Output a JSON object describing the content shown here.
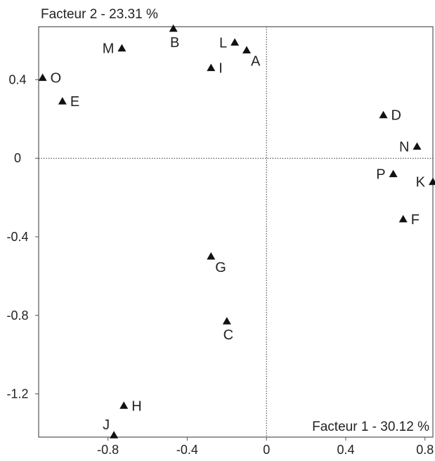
{
  "chart_data": {
    "type": "scatter",
    "x_axis_title": "Facteur 1  -  30.12 %",
    "y_axis_title": "Facteur 2  -  23.31 %",
    "xlim": [
      -1.15,
      0.84
    ],
    "ylim": [
      -1.42,
      0.67
    ],
    "x_ticks": [
      {
        "value": -0.8,
        "label": "-0.8"
      },
      {
        "value": -0.4,
        "label": "-0.4"
      },
      {
        "value": 0,
        "label": "0"
      },
      {
        "value": 0.4,
        "label": "0.4"
      },
      {
        "value": 0.8,
        "label": "0.8"
      }
    ],
    "y_ticks": [
      {
        "value": 0.4,
        "label": "0.4"
      },
      {
        "value": 0,
        "label": "0"
      },
      {
        "value": -0.4,
        "label": "-0.4"
      },
      {
        "value": -0.8,
        "label": "-0.8"
      },
      {
        "value": -1.2,
        "label": "-1.2"
      }
    ],
    "zero_lines": true,
    "marker": "triangle",
    "marker_color": "#111111",
    "points": [
      {
        "label": "A",
        "x": -0.1,
        "y": 0.55,
        "pos": "below-right"
      },
      {
        "label": "B",
        "x": -0.47,
        "y": 0.66,
        "pos": "below"
      },
      {
        "label": "C",
        "x": -0.2,
        "y": -0.83,
        "pos": "below"
      },
      {
        "label": "D",
        "x": 0.59,
        "y": 0.22,
        "pos": "right"
      },
      {
        "label": "E",
        "x": -1.03,
        "y": 0.29,
        "pos": "right"
      },
      {
        "label": "F",
        "x": 0.69,
        "y": -0.31,
        "pos": "right"
      },
      {
        "label": "G",
        "x": -0.28,
        "y": -0.5,
        "pos": "below-right"
      },
      {
        "label": "H",
        "x": -0.72,
        "y": -1.26,
        "pos": "right"
      },
      {
        "label": "I",
        "x": -0.28,
        "y": 0.46,
        "pos": "right"
      },
      {
        "label": "J",
        "x": -0.77,
        "y": -1.41,
        "pos": "above-left"
      },
      {
        "label": "K",
        "x": 0.84,
        "y": -0.12,
        "pos": "left"
      },
      {
        "label": "L",
        "x": -0.16,
        "y": 0.59,
        "pos": "left"
      },
      {
        "label": "M",
        "x": -0.73,
        "y": 0.56,
        "pos": "left"
      },
      {
        "label": "N",
        "x": 0.76,
        "y": 0.06,
        "pos": "left"
      },
      {
        "label": "O",
        "x": -1.13,
        "y": 0.41,
        "pos": "right"
      },
      {
        "label": "P",
        "x": 0.64,
        "y": -0.08,
        "pos": "left"
      }
    ]
  }
}
